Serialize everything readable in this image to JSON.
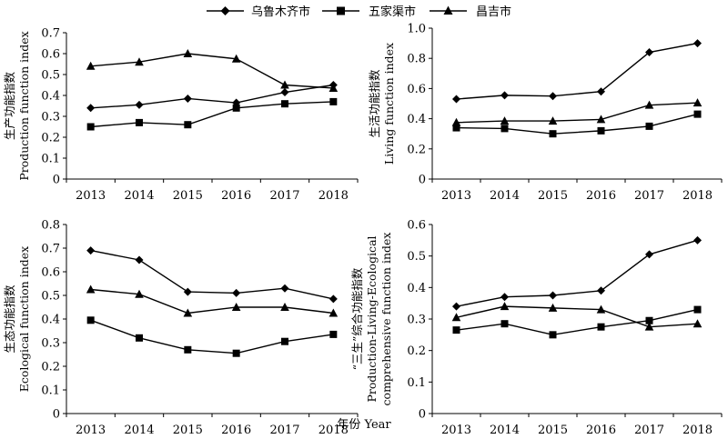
{
  "legend": {
    "series": [
      "乌鲁木齐市",
      "五家渠市",
      "昌吉市"
    ]
  },
  "x_title": "年份 Year",
  "chart_data": [
    {
      "type": "line",
      "ylabel": [
        "生产功能指数",
        "Production function index"
      ],
      "x": [
        "2013",
        "2014",
        "2015",
        "2016",
        "2017",
        "2018"
      ],
      "ylim": [
        0,
        0.7
      ],
      "yticks": [
        "0",
        "0.1",
        "0.2",
        "0.3",
        "0.4",
        "0.5",
        "0.6",
        "0.7"
      ],
      "series": [
        {
          "name": "乌鲁木齐市",
          "marker": "diamond",
          "values": [
            0.34,
            0.355,
            0.385,
            0.365,
            0.415,
            0.45
          ]
        },
        {
          "name": "五家渠市",
          "marker": "square",
          "values": [
            0.25,
            0.27,
            0.26,
            0.34,
            0.36,
            0.37
          ]
        },
        {
          "name": "昌吉市",
          "marker": "triangle",
          "values": [
            0.54,
            0.56,
            0.6,
            0.575,
            0.45,
            0.435
          ]
        }
      ]
    },
    {
      "type": "line",
      "ylabel": [
        "生活功能指数",
        "Living function index"
      ],
      "x": [
        "2013",
        "2014",
        "2015",
        "2016",
        "2017",
        "2018"
      ],
      "ylim": [
        0,
        1.0
      ],
      "yticks": [
        "0",
        "0.2",
        "0.4",
        "0.6",
        "0.8",
        "1.0"
      ],
      "series": [
        {
          "name": "乌鲁木齐市",
          "marker": "diamond",
          "values": [
            0.53,
            0.555,
            0.55,
            0.58,
            0.84,
            0.9
          ]
        },
        {
          "name": "五家渠市",
          "marker": "square",
          "values": [
            0.34,
            0.335,
            0.3,
            0.32,
            0.35,
            0.43
          ]
        },
        {
          "name": "昌吉市",
          "marker": "triangle",
          "values": [
            0.375,
            0.385,
            0.385,
            0.395,
            0.49,
            0.505
          ]
        }
      ]
    },
    {
      "type": "line",
      "ylabel": [
        "生态功能指数",
        "Ecological function index"
      ],
      "x": [
        "2013",
        "2014",
        "2015",
        "2016",
        "2017",
        "2018"
      ],
      "ylim": [
        0,
        0.8
      ],
      "yticks": [
        "0",
        "0.1",
        "0.2",
        "0.3",
        "0.4",
        "0.5",
        "0.6",
        "0.7",
        "0.8"
      ],
      "series": [
        {
          "name": "乌鲁木齐市",
          "marker": "diamond",
          "values": [
            0.69,
            0.65,
            0.515,
            0.51,
            0.53,
            0.485
          ]
        },
        {
          "name": "五家渠市",
          "marker": "square",
          "values": [
            0.395,
            0.32,
            0.27,
            0.255,
            0.305,
            0.335
          ]
        },
        {
          "name": "昌吉市",
          "marker": "triangle",
          "values": [
            0.525,
            0.505,
            0.425,
            0.45,
            0.45,
            0.425
          ]
        }
      ]
    },
    {
      "type": "line",
      "ylabel": [
        "“三生”综合功能指数",
        "Production-Living-Ecological",
        "comprehensive function index"
      ],
      "x": [
        "2013",
        "2014",
        "2015",
        "2016",
        "2017",
        "2018"
      ],
      "ylim": [
        0,
        0.6
      ],
      "yticks": [
        "0",
        "0.1",
        "0.2",
        "0.3",
        "0.4",
        "0.5",
        "0.6"
      ],
      "series": [
        {
          "name": "乌鲁木齐市",
          "marker": "diamond",
          "values": [
            0.34,
            0.37,
            0.375,
            0.39,
            0.505,
            0.55
          ]
        },
        {
          "name": "五家渠市",
          "marker": "square",
          "values": [
            0.265,
            0.285,
            0.25,
            0.275,
            0.295,
            0.33
          ]
        },
        {
          "name": "昌吉市",
          "marker": "triangle",
          "values": [
            0.305,
            0.34,
            0.335,
            0.33,
            0.275,
            0.285
          ]
        }
      ]
    }
  ]
}
